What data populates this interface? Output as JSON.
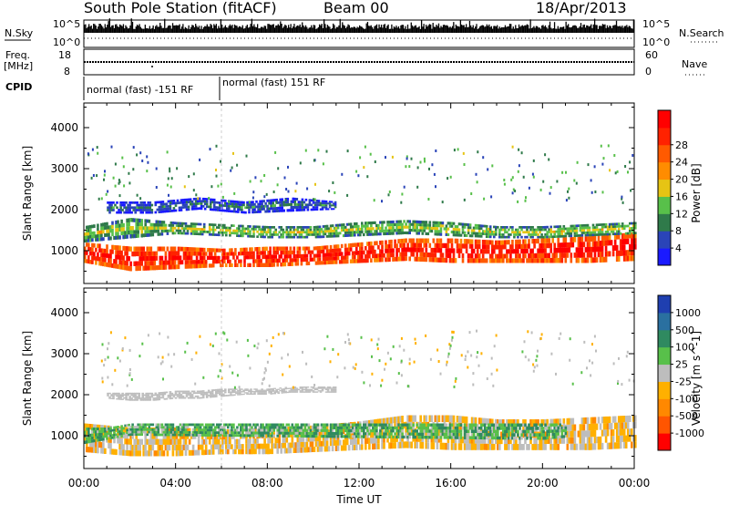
{
  "header": {
    "station": "South Pole Station (fitACF)",
    "beam": "Beam 00",
    "date": "18/Apr/2013"
  },
  "strips": {
    "nsky_label": "N.Sky",
    "nsearch_label": "N.Search",
    "nsky_tick_top": "10^5",
    "nsky_tick_bottom": "10^0",
    "nsearch_tick_top": "10^5",
    "nsearch_tick_bottom": "10^0",
    "freq_label": "Freq.",
    "freq_unit": "[MHz]",
    "freq_tick_top": "18",
    "freq_tick_bottom": "8",
    "nave_label": "Nave",
    "nave_tick_top": "60",
    "nave_tick_bottom": "0",
    "cpid_label": "CPID",
    "cpid_segments": [
      {
        "label": "normal (fast) -151 RF",
        "start_hour": 0,
        "end_hour": 6
      },
      {
        "label": "normal (fast) 151 RF",
        "start_hour": 6,
        "end_hour": 24
      }
    ]
  },
  "axes": {
    "xlabel": "Time UT",
    "x_ticks": [
      "00:00",
      "04:00",
      "08:00",
      "12:00",
      "16:00",
      "20:00",
      "00:00"
    ],
    "ylabel": "Slant Range [km]",
    "y_ticks": [
      "1000",
      "2000",
      "3000",
      "4000"
    ]
  },
  "colorbars": {
    "power": {
      "label": "Power [dB]",
      "ticks": [
        "4",
        "8",
        "12",
        "16",
        "20",
        "24",
        "28"
      ],
      "colors": [
        "#1a1aff",
        "#2a44b8",
        "#2f7a4a",
        "#58c04a",
        "#e6c414",
        "#ff8c00",
        "#ff5a00",
        "#ff2200",
        "#ff0000"
      ]
    },
    "velocity": {
      "label": "Velocity [m s^-1]",
      "ticks": [
        "1000",
        "500",
        "100",
        "25",
        "-25",
        "-100",
        "-500",
        "-1000"
      ],
      "colors": [
        "#1f3fb0",
        "#2a70a0",
        "#2f8a60",
        "#58c04a",
        "#bdbdbd",
        "#ffb000",
        "#ff8800",
        "#ff5500",
        "#ff0000"
      ]
    }
  },
  "chart_data": [
    {
      "type": "heatmap",
      "title": "Power",
      "xlabel": "Time UT",
      "ylabel": "Slant Range [km]",
      "xlim": [
        0,
        24
      ],
      "ylim": [
        200,
        4600
      ],
      "colorbar_label": "Power [dB]",
      "colorbar_range": [
        0,
        30
      ],
      "bands": [
        {
          "name": "main",
          "x": [
            0,
            2,
            4,
            6,
            8,
            10,
            12,
            14,
            16,
            18,
            20,
            22,
            24
          ],
          "range_low": [
            700,
            500,
            550,
            600,
            600,
            650,
            700,
            750,
            700,
            700,
            700,
            700,
            750
          ],
          "range_high": [
            1200,
            1100,
            1100,
            1050,
            1100,
            1100,
            1200,
            1300,
            1300,
            1250,
            1300,
            1350,
            1450
          ],
          "value": 28
        },
        {
          "name": "upper_branch",
          "x": [
            0,
            2,
            4,
            6,
            8,
            10,
            12,
            14,
            16,
            18,
            20,
            22,
            24
          ],
          "range_low": [
            1200,
            1300,
            1400,
            1350,
            1300,
            1300,
            1350,
            1400,
            1350,
            1300,
            1300,
            1350,
            1400
          ],
          "range_high": [
            1600,
            1800,
            1700,
            1650,
            1600,
            1600,
            1700,
            1750,
            1700,
            1600,
            1600,
            1650,
            1700
          ],
          "value": 14
        },
        {
          "name": "far_echoes",
          "x": [
            1,
            3,
            5,
            7,
            9,
            11
          ],
          "range_low": [
            1900,
            1900,
            2000,
            1900,
            1950,
            2000
          ],
          "range_high": [
            2200,
            2200,
            2300,
            2200,
            2300,
            2200
          ],
          "value": 8
        }
      ]
    },
    {
      "type": "heatmap",
      "title": "Velocity",
      "xlabel": "Time UT",
      "ylabel": "Slant Range [km]",
      "xlim": [
        0,
        24
      ],
      "ylim": [
        200,
        4600
      ],
      "colorbar_label": "Velocity [m s^-1]",
      "colorbar_range": [
        -1000,
        1000
      ],
      "bands": [
        {
          "name": "main",
          "x": [
            0,
            2,
            4,
            6,
            8,
            10,
            12,
            14,
            16,
            18,
            20,
            22,
            24
          ],
          "range_low": [
            600,
            500,
            500,
            550,
            550,
            600,
            650,
            700,
            650,
            650,
            650,
            650,
            700
          ],
          "range_high": [
            1300,
            1200,
            1200,
            1150,
            1200,
            1250,
            1350,
            1500,
            1500,
            1400,
            1400,
            1450,
            1500
          ],
          "value": -150
        },
        {
          "name": "ground_scatter",
          "x": [
            1,
            2,
            3,
            4,
            5,
            6,
            7,
            8,
            9,
            10,
            11
          ],
          "range_low": [
            1900,
            1850,
            1850,
            1900,
            1900,
            1950,
            2000,
            2000,
            2050,
            2050,
            2050
          ],
          "range_high": [
            2050,
            2050,
            2050,
            2100,
            2100,
            2150,
            2150,
            2150,
            2200,
            2200,
            2200
          ],
          "value": 0
        },
        {
          "name": "positive_patches",
          "x": [
            0,
            1,
            2,
            19,
            20,
            21
          ],
          "range_low": [
            800,
            900,
            1000,
            900,
            900,
            950
          ],
          "range_high": [
            1200,
            1200,
            1300,
            1300,
            1300,
            1300
          ],
          "value": 300
        }
      ]
    }
  ]
}
